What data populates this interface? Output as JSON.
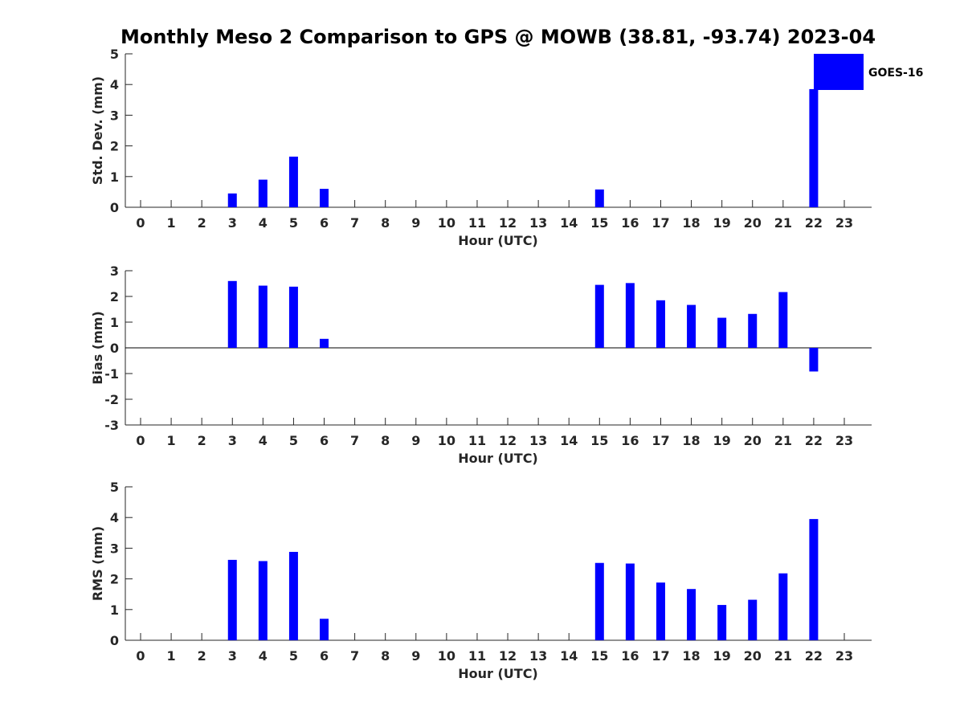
{
  "title": "Monthly Meso 2 Comparison to GPS @ MOWB (38.81, -93.74) 2023-04",
  "legend": {
    "label": "GOES-16",
    "color": "#0000ff",
    "position": "top-right"
  },
  "chart_data": [
    {
      "type": "bar",
      "xlabel": "Hour (UTC)",
      "ylabel": "Std. Dev. (mm)",
      "ylim": [
        0,
        5
      ],
      "yticks": [
        0,
        1,
        2,
        3,
        4,
        5
      ],
      "categories": [
        "0",
        "1",
        "2",
        "3",
        "4",
        "5",
        "6",
        "7",
        "8",
        "9",
        "10",
        "11",
        "12",
        "13",
        "14",
        "15",
        "16",
        "17",
        "18",
        "19",
        "20",
        "21",
        "22",
        "23"
      ],
      "series": [
        {
          "name": "GOES-16",
          "color": "#0000ff",
          "values": [
            null,
            null,
            null,
            0.45,
            0.9,
            1.65,
            0.6,
            null,
            null,
            null,
            null,
            null,
            null,
            null,
            null,
            0.58,
            null,
            null,
            null,
            null,
            null,
            null,
            3.85,
            null
          ]
        }
      ]
    },
    {
      "type": "bar",
      "xlabel": "Hour (UTC)",
      "ylabel": "Bias (mm)",
      "ylim": [
        -3,
        3
      ],
      "yticks": [
        -3,
        -2,
        -1,
        0,
        1,
        2,
        3
      ],
      "categories": [
        "0",
        "1",
        "2",
        "3",
        "4",
        "5",
        "6",
        "7",
        "8",
        "9",
        "10",
        "11",
        "12",
        "13",
        "14",
        "15",
        "16",
        "17",
        "18",
        "19",
        "20",
        "21",
        "22",
        "23"
      ],
      "series": [
        {
          "name": "GOES-16",
          "color": "#0000ff",
          "values": [
            null,
            null,
            null,
            2.6,
            2.42,
            2.38,
            0.35,
            null,
            null,
            null,
            null,
            null,
            null,
            null,
            null,
            2.45,
            2.52,
            1.85,
            1.67,
            1.17,
            1.32,
            2.17,
            -0.92,
            null
          ]
        }
      ]
    },
    {
      "type": "bar",
      "xlabel": "Hour (UTC)",
      "ylabel": "RMS (mm)",
      "ylim": [
        0,
        5
      ],
      "yticks": [
        0,
        1,
        2,
        3,
        4,
        5
      ],
      "categories": [
        "0",
        "1",
        "2",
        "3",
        "4",
        "5",
        "6",
        "7",
        "8",
        "9",
        "10",
        "11",
        "12",
        "13",
        "14",
        "15",
        "16",
        "17",
        "18",
        "19",
        "20",
        "21",
        "22",
        "23"
      ],
      "series": [
        {
          "name": "GOES-16",
          "color": "#0000ff",
          "values": [
            null,
            null,
            null,
            2.62,
            2.58,
            2.88,
            0.7,
            null,
            null,
            null,
            null,
            null,
            null,
            null,
            null,
            2.52,
            2.5,
            1.88,
            1.67,
            1.15,
            1.32,
            2.18,
            3.95,
            null
          ]
        }
      ]
    }
  ]
}
